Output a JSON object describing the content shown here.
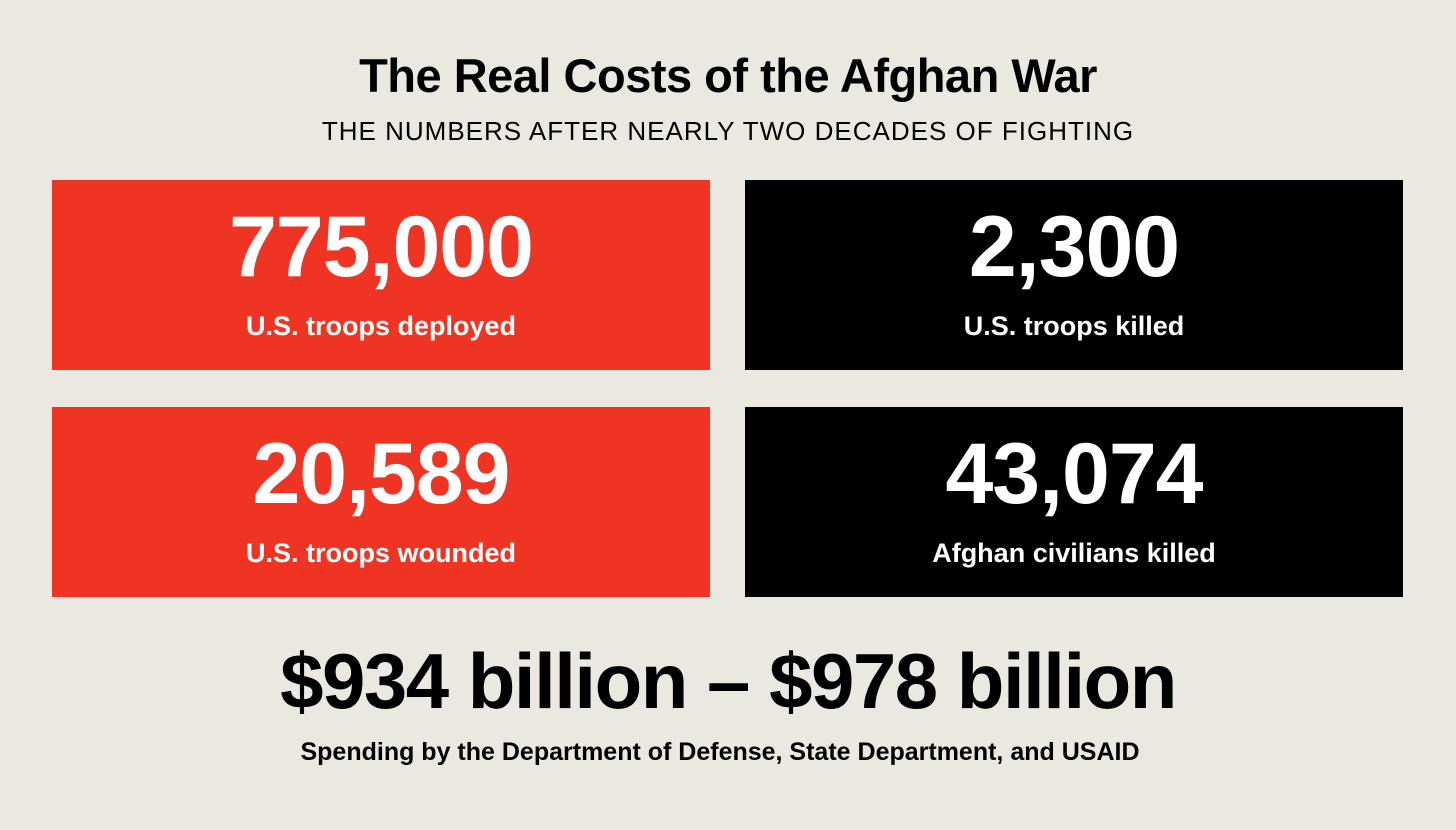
{
  "header": {
    "title": "The Real Costs of the Afghan War",
    "subtitle": "THE NUMBERS AFTER NEARLY TWO DECADES OF FIGHTING"
  },
  "stats": [
    {
      "value": "775,000",
      "label": "U.S. troops deployed"
    },
    {
      "value": "2,300",
      "label": "U.S. troops killed"
    },
    {
      "value": "20,589",
      "label": "U.S. troops wounded"
    },
    {
      "value": "43,074",
      "label": "Afghan civilians killed"
    }
  ],
  "spending": {
    "value": "$934 billion – $978 billion",
    "label": "Spending by the Department of Defense, State Department, and USAID"
  }
}
